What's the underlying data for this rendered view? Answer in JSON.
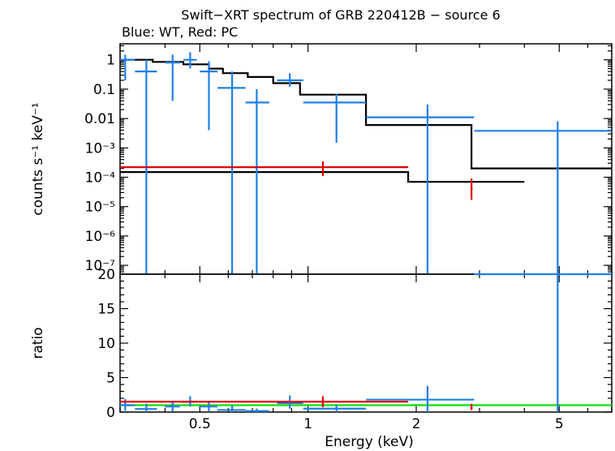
{
  "title": "Swift−XRT spectrum of GRB 220412B − source 6",
  "subtitle": "Blue: WT, Red: PC",
  "colors": {
    "wt": "#1f7fe6",
    "pc": "#e00000",
    "model": "#000000",
    "ref": "#22dd22",
    "frame": "#000000"
  },
  "chart_data": [
    {
      "type": "scatter",
      "panel": "spectrum",
      "ylabel": "counts s⁻¹ keV⁻¹",
      "xscale": "log",
      "yscale": "log",
      "xlim": [
        0.3,
        7.0
      ],
      "ylim": [
        5e-08,
        3.5
      ],
      "y_ticks": [
        {
          "v": 1,
          "label": "1"
        },
        {
          "v": 0.1,
          "label": "0.1"
        },
        {
          "v": 0.01,
          "label": "0.01"
        },
        {
          "v": 0.001,
          "label": "10⁻³"
        },
        {
          "v": 0.0001,
          "label": "10⁻⁴"
        },
        {
          "v": 1e-05,
          "label": "10⁻⁵"
        },
        {
          "v": 1e-06,
          "label": "10⁻⁶"
        },
        {
          "v": 1e-07,
          "label": "10⁻⁷"
        }
      ],
      "series": [
        {
          "name": "WT",
          "points": [
            {
              "x": 0.31,
              "xlo": 0.3,
              "xhi": 0.33,
              "y": 1.0,
              "ylo": 0.2,
              "yhi": 1.5
            },
            {
              "x": 0.355,
              "xlo": 0.33,
              "xhi": 0.38,
              "y": 0.4,
              "ylo": 5e-08,
              "yhi": 1.0
            },
            {
              "x": 0.42,
              "xlo": 0.4,
              "xhi": 0.44,
              "y": 0.8,
              "ylo": 0.04,
              "yhi": 1.5
            },
            {
              "x": 0.47,
              "xlo": 0.45,
              "xhi": 0.49,
              "y": 1.0,
              "ylo": 0.5,
              "yhi": 1.8
            },
            {
              "x": 0.53,
              "xlo": 0.5,
              "xhi": 0.56,
              "y": 0.4,
              "ylo": 0.004,
              "yhi": 0.9
            },
            {
              "x": 0.615,
              "xlo": 0.56,
              "xhi": 0.67,
              "y": 0.11,
              "ylo": 5e-08,
              "yhi": 0.4
            },
            {
              "x": 0.72,
              "xlo": 0.67,
              "xhi": 0.78,
              "y": 0.035,
              "ylo": 5e-08,
              "yhi": 0.1
            },
            {
              "x": 0.89,
              "xlo": 0.82,
              "xhi": 0.97,
              "y": 0.2,
              "ylo": 0.12,
              "yhi": 0.35
            },
            {
              "x": 1.2,
              "xlo": 0.97,
              "xhi": 1.45,
              "y": 0.035,
              "ylo": 0.0015,
              "yhi": 0.07
            },
            {
              "x": 2.15,
              "xlo": 1.45,
              "xhi": 2.9,
              "y": 0.011,
              "ylo": 5e-08,
              "yhi": 0.03
            },
            {
              "x": 4.95,
              "xlo": 2.9,
              "xhi": 7.0,
              "y": 0.0038,
              "ylo": 5e-08,
              "yhi": 0.008
            }
          ]
        },
        {
          "name": "PC",
          "points": [
            {
              "x": 1.1,
              "xlo": 0.3,
              "xhi": 1.9,
              "y": 0.00022,
              "ylo": 0.00011,
              "yhi": 0.00035
            },
            {
              "x": 2.85,
              "xlo": 2.83,
              "xhi": 2.87,
              "y": 4e-05,
              "ylo": 1.7e-05,
              "yhi": 9e-05
            }
          ]
        }
      ],
      "model": [
        {
          "name": "WT model",
          "steps": [
            {
              "xlo": 0.3,
              "xhi": 0.37,
              "y": 1.0
            },
            {
              "xlo": 0.37,
              "xhi": 0.45,
              "y": 0.85
            },
            {
              "xlo": 0.45,
              "xhi": 0.53,
              "y": 0.7
            },
            {
              "xlo": 0.53,
              "xhi": 0.58,
              "y": 0.5
            },
            {
              "xlo": 0.58,
              "xhi": 0.68,
              "y": 0.35
            },
            {
              "xlo": 0.68,
              "xhi": 0.8,
              "y": 0.26
            },
            {
              "xlo": 0.8,
              "xhi": 0.95,
              "y": 0.16
            },
            {
              "xlo": 0.95,
              "xhi": 1.45,
              "y": 0.065
            },
            {
              "xlo": 1.45,
              "xhi": 2.85,
              "y": 0.006
            },
            {
              "xlo": 2.85,
              "xhi": 7.0,
              "y": 0.0002
            }
          ]
        },
        {
          "name": "PC model",
          "steps": [
            {
              "xlo": 0.3,
              "xhi": 1.9,
              "y": 0.00015
            },
            {
              "xlo": 1.9,
              "xhi": 4.0,
              "y": 7e-05
            }
          ]
        }
      ]
    },
    {
      "type": "scatter",
      "panel": "ratio",
      "xlabel": "Energy (keV)",
      "ylabel": "ratio",
      "xscale": "log",
      "xlim": [
        0.3,
        7.0
      ],
      "ylim": [
        0,
        20
      ],
      "x_ticks": [
        {
          "v": 0.5,
          "label": "0.5"
        },
        {
          "v": 1,
          "label": "1"
        },
        {
          "v": 2,
          "label": "2"
        },
        {
          "v": 5,
          "label": "5"
        }
      ],
      "y_ticks": [
        {
          "v": 0,
          "label": "0"
        },
        {
          "v": 5,
          "label": "5"
        },
        {
          "v": 10,
          "label": "10"
        },
        {
          "v": 15,
          "label": "15"
        },
        {
          "v": 20,
          "label": "20"
        }
      ],
      "reference_line": 1,
      "series": [
        {
          "name": "WT",
          "points": [
            {
              "x": 0.31,
              "xlo": 0.3,
              "xhi": 0.33,
              "y": 1.0,
              "ylo": 0.2,
              "yhi": 1.9
            },
            {
              "x": 0.355,
              "xlo": 0.33,
              "xhi": 0.38,
              "y": 0.45,
              "ylo": 0,
              "yhi": 1.2
            },
            {
              "x": 0.42,
              "xlo": 0.4,
              "xhi": 0.44,
              "y": 0.8,
              "ylo": 0.1,
              "yhi": 1.6
            },
            {
              "x": 0.47,
              "xlo": 0.45,
              "xhi": 0.49,
              "y": 1.5,
              "ylo": 0.8,
              "yhi": 2.3
            },
            {
              "x": 0.53,
              "xlo": 0.5,
              "xhi": 0.56,
              "y": 0.8,
              "ylo": 0.1,
              "yhi": 1.5
            },
            {
              "x": 0.615,
              "xlo": 0.56,
              "xhi": 0.67,
              "y": 0.3,
              "ylo": 0,
              "yhi": 1.0
            },
            {
              "x": 0.72,
              "xlo": 0.67,
              "xhi": 0.78,
              "y": 0.15,
              "ylo": 0,
              "yhi": 0.5
            },
            {
              "x": 0.89,
              "xlo": 0.82,
              "xhi": 0.97,
              "y": 1.3,
              "ylo": 0.5,
              "yhi": 2.4
            },
            {
              "x": 1.2,
              "xlo": 0.97,
              "xhi": 1.45,
              "y": 0.5,
              "ylo": 0,
              "yhi": 1.1
            },
            {
              "x": 2.15,
              "xlo": 1.45,
              "xhi": 2.9,
              "y": 1.8,
              "ylo": 0,
              "yhi": 3.8
            },
            {
              "x": 4.95,
              "xlo": 2.9,
              "xhi": 7.0,
              "y": 20,
              "ylo": 0,
              "yhi": 20
            }
          ]
        },
        {
          "name": "PC",
          "points": [
            {
              "x": 1.1,
              "xlo": 0.3,
              "xhi": 1.9,
              "y": 1.5,
              "ylo": 0.7,
              "yhi": 2.3
            },
            {
              "x": 2.85,
              "xlo": 2.83,
              "xhi": 2.87,
              "y": 0.6,
              "ylo": 0.3,
              "yhi": 1.2
            }
          ]
        }
      ]
    }
  ]
}
